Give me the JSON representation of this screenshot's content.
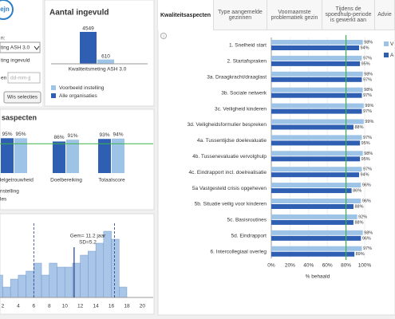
{
  "ui": {
    "logo": "ejn",
    "filter_label": "n:",
    "dropdown": "ting ASH 3.0",
    "filter_option": "ting ingevuld",
    "date_label": "en",
    "date_placeholder": "dd-mm-jj",
    "clear_button": "Wis selecties",
    "info_icon": "i",
    "tabs": [
      "Kwaliteitsaspecten",
      "Type aangemelde gezinnen",
      "Voornaamste problematiek gezin",
      "Tijdens de spoedhulp-periode is gewerkt aan",
      "Advie"
    ]
  },
  "chart_data": [
    {
      "type": "bar",
      "title": "Aantal ingevuld",
      "categories": [
        "Kwaliteitsmeting ASH 3.0"
      ],
      "series": [
        {
          "name": "Voorbeeld instelling",
          "color": "#9dc3e6",
          "values": [
            610
          ]
        },
        {
          "name": "Alle organisaties",
          "color": "#2f5fb3",
          "values": [
            4549
          ]
        }
      ],
      "ylim": [
        0,
        5000
      ]
    },
    {
      "type": "grouped",
      "title": "saspecten",
      "categories": [
        "ndelgetrouwheid",
        "Doelbereiking",
        "Totaalscore"
      ],
      "series": [
        {
          "name": "nstelling",
          "color": "#9dc3e6",
          "values": [
            95,
            91,
            94
          ],
          "value_labels": [
            "95%",
            "91%",
            "94%"
          ]
        },
        {
          "name": "les",
          "color": "#2f5fb3",
          "values": [
            95,
            86,
            93
          ],
          "value_labels": [
            "95%",
            "86%",
            "93%"
          ]
        }
      ],
      "ylim": [
        0,
        100
      ],
      "reference_line": 80,
      "reference_color": "#3cb44b"
    },
    {
      "type": "histogram",
      "annotations": [
        "Gem= 11.2 jaar",
        "SD=5.2"
      ],
      "bins": [
        0,
        1,
        2,
        3,
        4,
        5,
        6,
        7,
        8,
        9,
        10,
        11,
        12,
        13,
        14,
        15,
        16,
        17,
        18
      ],
      "counts": [
        18,
        28,
        13,
        23,
        28,
        33,
        43,
        28,
        43,
        38,
        38,
        43,
        53,
        58,
        68,
        83,
        73,
        13
      ],
      "color": "#a9c6e8",
      "xlim": [
        0,
        20
      ],
      "ylim": [
        0,
        90
      ],
      "xticks": [
        2,
        4,
        6,
        8,
        10,
        12,
        14,
        16,
        18,
        20
      ],
      "lines": [
        {
          "value": 6.0,
          "style": "dashed"
        },
        {
          "value": 11.2,
          "style": "solid"
        },
        {
          "value": 16.4,
          "style": "dashed"
        }
      ]
    },
    {
      "type": "barh",
      "xlabel": "% behaald",
      "categories": [
        "1. Snelheid start",
        "2. Startafspraken",
        "3a. Draagkracht/draaglast",
        "3b. Sociale netwerk",
        "3c. Veiligheid kinderen",
        "3d. Veiligheidsformulier bespreken",
        "4a. Tussentijdse doelevaluatie",
        "4b. Tussenevaluatie vervolghulp",
        "4c. Eindrapport incl. doelrealisatie",
        "5a Vastgesteld crisis opgeheven",
        "5b. Situatie veilig voor kinderen",
        "5c. Basisroutines",
        "5d. Eindrapport",
        "6. Intercollegiaal overleg"
      ],
      "series": [
        {
          "name": "V",
          "color": "#9dc3e6",
          "values": [
            98,
            97,
            98,
            98,
            99,
            99,
            97,
            98,
            97,
            96,
            96,
            92,
            98,
            97
          ],
          "value_labels": [
            "98%",
            "97%",
            "98%",
            "98%",
            "99%",
            "99%",
            "97%",
            "98%",
            "97%",
            "96%",
            "96%",
            "92%",
            "98%",
            "97%"
          ]
        },
        {
          "name": "A",
          "color": "#2f5fb3",
          "values": [
            94,
            95,
            97,
            97,
            97,
            88,
            95,
            95,
            94,
            86,
            88,
            88,
            96,
            89
          ],
          "value_labels": [
            "94%",
            "95%",
            "97%",
            "97%",
            "97%",
            "88%",
            "95%",
            "95%",
            "94%",
            "86%",
            "88%",
            "88%",
            "96%",
            "89%"
          ]
        }
      ],
      "xlim": [
        0,
        100
      ],
      "xticks": [
        {
          "value": 0,
          "label": "0%"
        },
        {
          "value": 20,
          "label": "20%"
        },
        {
          "value": 40,
          "label": "40%"
        },
        {
          "value": 60,
          "label": "60%"
        },
        {
          "value": 80,
          "label": "80%"
        },
        {
          "value": 100,
          "label": "100%"
        }
      ],
      "reference_line": 80,
      "reference_color": "#3cb44b"
    }
  ]
}
